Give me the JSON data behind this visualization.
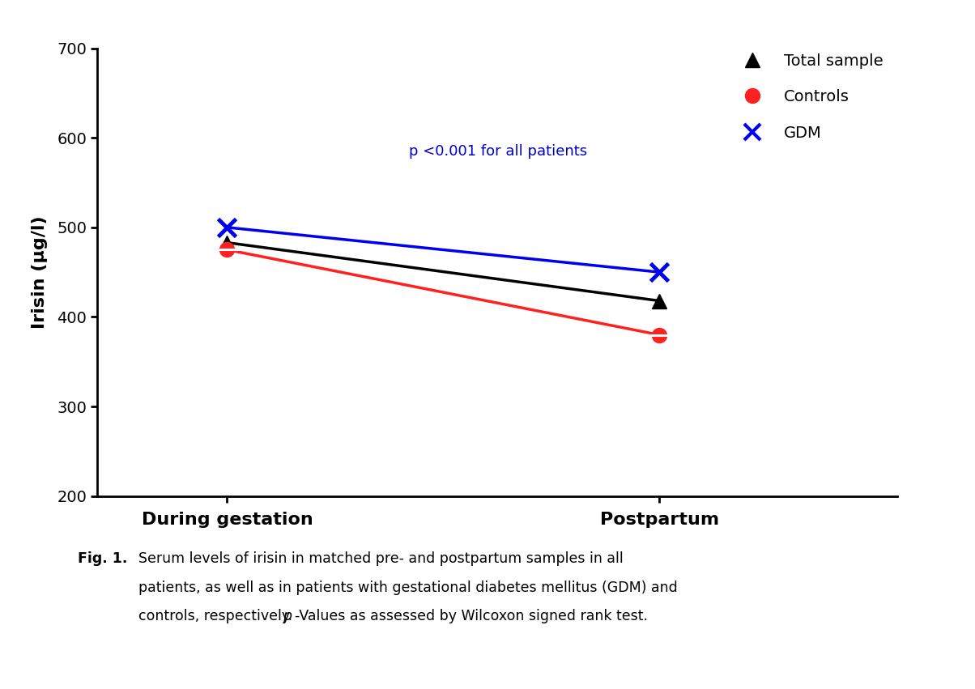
{
  "series": {
    "total_sample": {
      "x": [
        0,
        1
      ],
      "y": [
        483,
        418
      ],
      "color": "#000000",
      "label": "Total sample",
      "marker": "^",
      "markersize": 13,
      "linewidth": 2.5
    },
    "controls": {
      "x": [
        0,
        1
      ],
      "y": [
        475,
        380
      ],
      "color": "#ff2020",
      "label": "Controls",
      "marker": "o",
      "markersize": 13,
      "linewidth": 2.5
    },
    "gdm": {
      "x": [
        0,
        1
      ],
      "y": [
        500,
        450
      ],
      "color": "#0000ee",
      "label": "GDM",
      "marker": "x",
      "markersize": 16,
      "linewidth": 2.5
    }
  },
  "xticks": [
    0,
    1
  ],
  "xticklabels": [
    "During gestation",
    "Postpartum"
  ],
  "ylim": [
    200,
    700
  ],
  "yticks": [
    200,
    300,
    400,
    500,
    600,
    700
  ],
  "ylabel": "Irisin (μg/l)",
  "annotation": "p <0.001 for all patients",
  "annotation_xdata": 0.42,
  "annotation_ydata": 580,
  "annotation_color": "#0000cc",
  "background_color": "#ffffff",
  "xlim": [
    -0.3,
    1.55
  ],
  "legend_fontsize": 14,
  "tick_fontsize": 14,
  "xlabel_fontsize": 16,
  "ylabel_fontsize": 16
}
